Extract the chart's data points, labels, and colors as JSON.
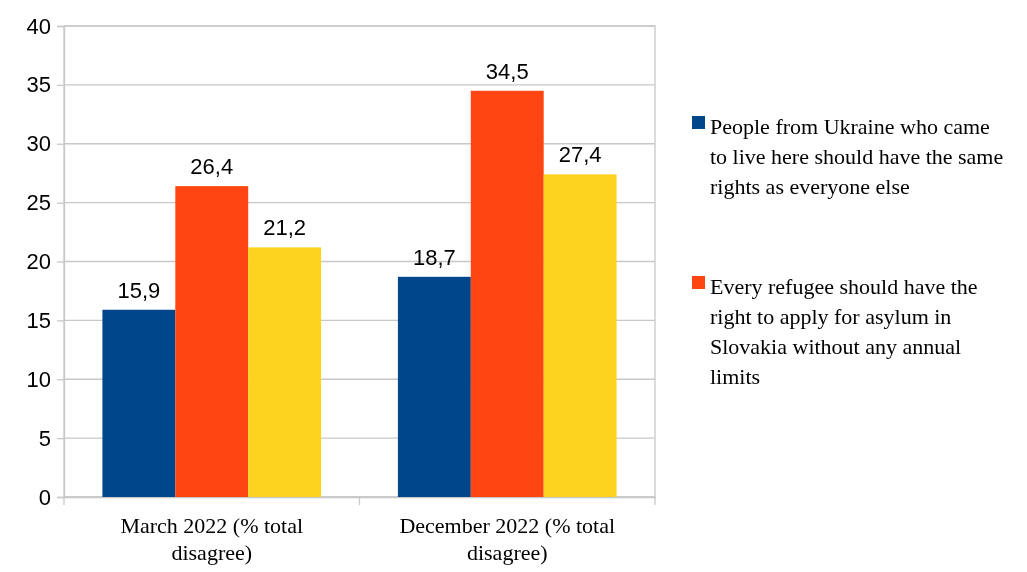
{
  "chart_data": {
    "type": "bar",
    "categories": [
      "March 2022 (% total disagree)",
      "December  2022 (% total disagree)"
    ],
    "series": [
      {
        "name": "People from Ukraine who came to live here should have the same rights as everyone else",
        "color": "#00468b",
        "values": [
          15.9,
          18.7
        ],
        "value_labels": [
          "15,9",
          "18,7"
        ]
      },
      {
        "name": "Every refugee should have the right to apply for asylum in Slovakia without any annual limits",
        "color": "#ff4511",
        "values": [
          26.4,
          34.5
        ],
        "value_labels": [
          "26,4",
          "34,5"
        ]
      },
      {
        "color": "#fdd320",
        "values": [
          21.2,
          27.4
        ],
        "value_labels": [
          "21,2",
          "27,4"
        ]
      }
    ],
    "ylim": [
      0,
      40
    ],
    "yticks": [
      0,
      5,
      10,
      15,
      20,
      25,
      30,
      35,
      40
    ],
    "grid": "y",
    "legend": "right"
  }
}
